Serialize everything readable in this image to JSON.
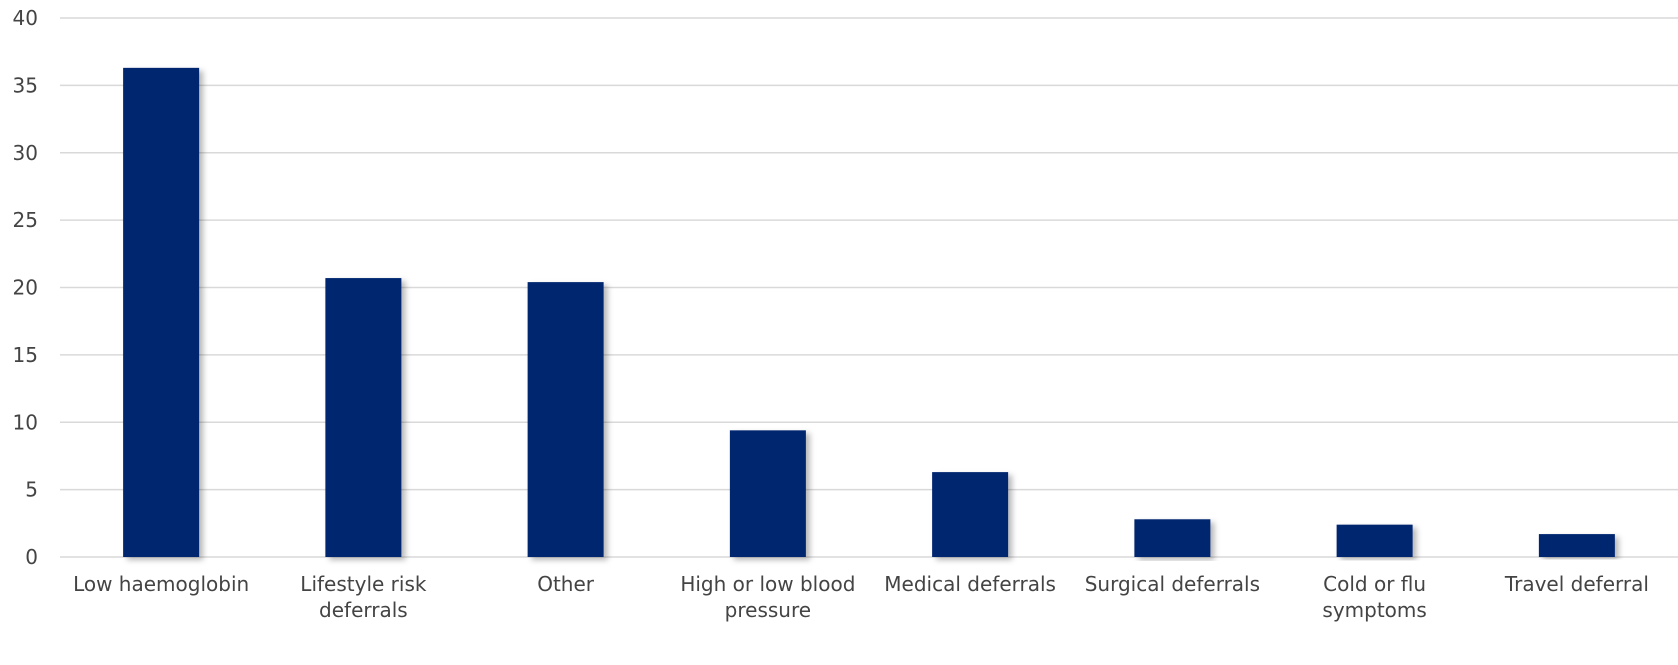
{
  "chart_data": {
    "type": "bar",
    "title": "",
    "xlabel": "",
    "ylabel": "",
    "ylim": [
      0,
      40
    ],
    "yticks": [
      0,
      5,
      10,
      15,
      20,
      25,
      30,
      35,
      40
    ],
    "grid": true,
    "legend": "none",
    "bar_color": "#002570",
    "gridline_color": "#d9d9d9",
    "categories": [
      "Low haemoglobin",
      "Lifestyle risk deferrals",
      "Other",
      "High or low blood pressure",
      "Medical deferrals",
      "Surgical deferrals",
      "Cold or flu symptoms",
      "Travel deferral"
    ],
    "category_lines": [
      [
        "Low haemoglobin"
      ],
      [
        "Lifestyle risk",
        "deferrals"
      ],
      [
        "Other"
      ],
      [
        "High or low blood",
        "pressure"
      ],
      [
        "Medical deferrals"
      ],
      [
        "Surgical deferrals"
      ],
      [
        "Cold or flu",
        "symptoms"
      ],
      [
        "Travel deferral"
      ]
    ],
    "values": [
      36.3,
      20.7,
      20.4,
      9.4,
      6.3,
      2.8,
      2.4,
      1.7
    ]
  }
}
